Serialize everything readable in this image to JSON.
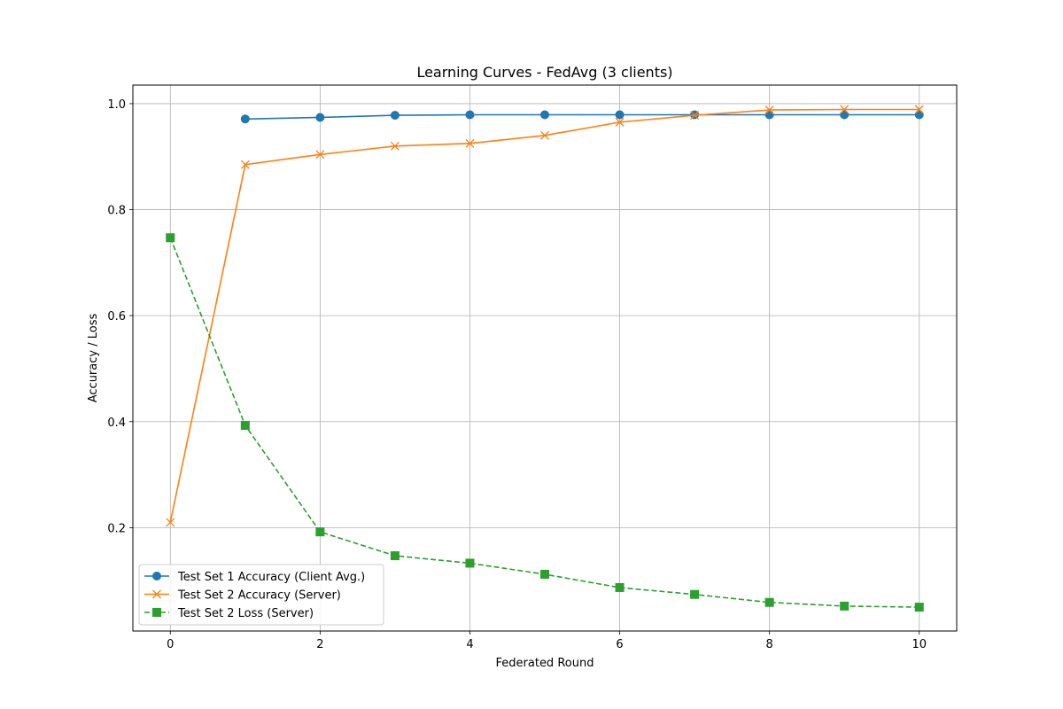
{
  "chart_data": {
    "type": "line",
    "title": "Learning Curves - FedAvg (3 clients)",
    "xlabel": "Federated Round",
    "ylabel": "Accuracy / Loss",
    "xlim": [
      -0.5,
      10.5
    ],
    "ylim": [
      0.005,
      1.035
    ],
    "x_ticks": [
      0,
      2,
      4,
      6,
      8,
      10
    ],
    "y_ticks": [
      0.2,
      0.4,
      0.6,
      0.8,
      1.0
    ],
    "x_tick_labels": [
      "0",
      "2",
      "4",
      "6",
      "8",
      "10"
    ],
    "y_tick_labels": [
      "0.2",
      "0.4",
      "0.6",
      "0.8",
      "1.0"
    ],
    "grid": true,
    "legend_position": "lower-left",
    "series": [
      {
        "name": "Test Set 1 Accuracy (Client Avg.)",
        "color": "#1f77b4",
        "marker": "circle",
        "line_style": "solid",
        "x": [
          1,
          2,
          3,
          4,
          5,
          6,
          7,
          8,
          9,
          10
        ],
        "values": [
          0.971,
          0.974,
          0.978,
          0.979,
          0.979,
          0.979,
          0.979,
          0.979,
          0.979,
          0.979
        ]
      },
      {
        "name": "Test Set 2 Accuracy (Server)",
        "color": "#ff7f0e",
        "marker": "x",
        "line_style": "solid",
        "x": [
          0,
          1,
          2,
          3,
          4,
          5,
          6,
          7,
          8,
          9,
          10
        ],
        "values": [
          0.21,
          0.885,
          0.904,
          0.92,
          0.925,
          0.94,
          0.965,
          0.978,
          0.988,
          0.989,
          0.989
        ]
      },
      {
        "name": "Test Set 2 Loss (Server)",
        "color": "#2ca02c",
        "marker": "square",
        "line_style": "dashed",
        "x": [
          0,
          1,
          2,
          3,
          4,
          5,
          6,
          7,
          8,
          9,
          10
        ],
        "values": [
          0.747,
          0.393,
          0.192,
          0.147,
          0.133,
          0.112,
          0.087,
          0.074,
          0.059,
          0.052,
          0.05
        ]
      }
    ]
  }
}
